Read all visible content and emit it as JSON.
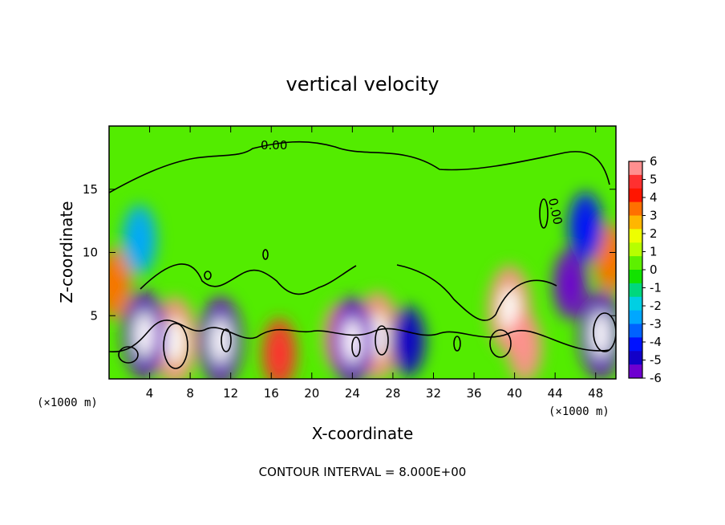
{
  "chart_data": {
    "type": "heatmap",
    "title": "vertical velocity",
    "xlabel": "X-coordinate",
    "ylabel": "Z-coordinate",
    "x_unit_left": "(×1000 m)",
    "x_unit_right": "(×1000 m)",
    "x_ticks": [
      "4",
      "8",
      "12",
      "16",
      "20",
      "24",
      "28",
      "32",
      "36",
      "40",
      "44",
      "48"
    ],
    "y_ticks": [
      "5",
      "10",
      "15"
    ],
    "xlim": [
      0,
      50
    ],
    "ylim": [
      0,
      20
    ],
    "footer": "CONTOUR INTERVAL = 8.000E+00",
    "colorbar": {
      "ticks": [
        "6",
        "5",
        "4",
        "3",
        "2",
        "1",
        "0",
        "-1",
        "-2",
        "-3",
        "-4",
        "-5",
        "-6"
      ],
      "range": [
        -6,
        6
      ],
      "colors": [
        "#ff8f8f",
        "#ff3030",
        "#ff1500",
        "#ff7000",
        "#ffb600",
        "#eeff00",
        "#b7ff00",
        "#5df000",
        "#12e200",
        "#00d77d",
        "#00cfe3",
        "#00a7ff",
        "#0062ff",
        "#0012ff",
        "#1200c8",
        "#6e00d0"
      ]
    },
    "contour_labels": [
      "0.00",
      "0.00"
    ],
    "features": [
      {
        "x": 6.5,
        "z": 3.0,
        "value": 8.5
      },
      {
        "x": 16.8,
        "z": 2.0,
        "value": 5.0
      },
      {
        "x": 22.8,
        "z": 3.3,
        "value": 5.5
      },
      {
        "x": 26.5,
        "z": 3.4,
        "value": 7.0
      },
      {
        "x": 39.5,
        "z": 5.5,
        "value": 8.0
      },
      {
        "x": 41.0,
        "z": 2.5,
        "value": 6.0
      },
      {
        "x": 49.5,
        "z": 9.5,
        "value": 3.5
      },
      {
        "x": 0.5,
        "z": 7.5,
        "value": 3.0
      },
      {
        "x": 3.5,
        "z": 3.5,
        "value": -7.0
      },
      {
        "x": 11.0,
        "z": 3.0,
        "value": -7.0
      },
      {
        "x": 24.0,
        "z": 3.0,
        "value": -6.5
      },
      {
        "x": 29.5,
        "z": 3.0,
        "value": -5.0
      },
      {
        "x": 45.5,
        "z": 7.5,
        "value": -6.0
      },
      {
        "x": 48.5,
        "z": 3.5,
        "value": -7.5
      },
      {
        "x": 3.0,
        "z": 11.0,
        "value": -3.0
      },
      {
        "x": 47.0,
        "z": 12.0,
        "value": -4.0
      }
    ]
  }
}
